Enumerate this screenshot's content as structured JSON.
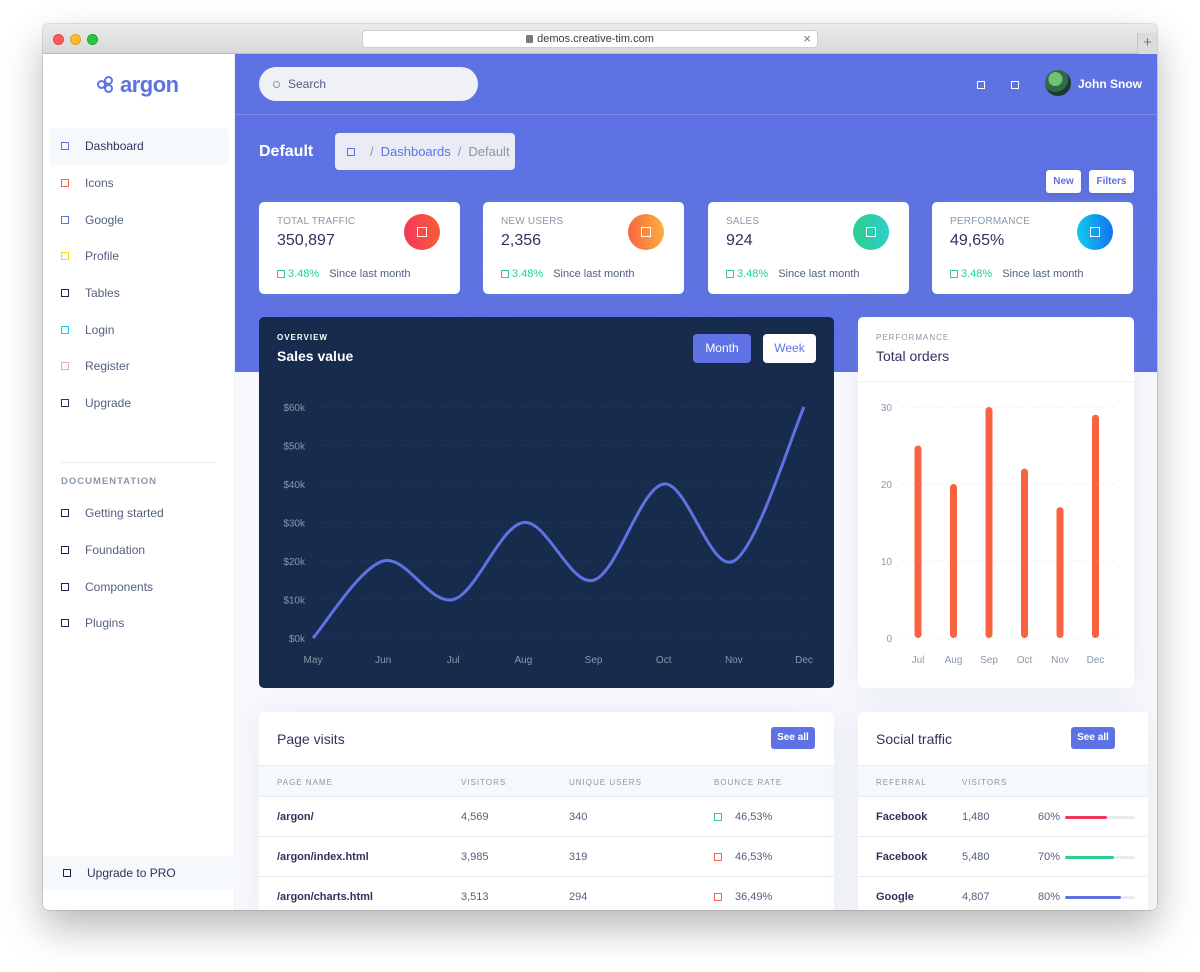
{
  "browser": {
    "url": "demos.creative-tim.com"
  },
  "brand": {
    "name": "argon"
  },
  "sidebar": {
    "items": [
      {
        "label": "Dashboard",
        "color": "#5e72e4"
      },
      {
        "label": "Icons",
        "color": "#fb6340"
      },
      {
        "label": "Google",
        "color": "#5e72e4"
      },
      {
        "label": "Profile",
        "color": "#ffd600"
      },
      {
        "label": "Tables",
        "color": "#172b4d"
      },
      {
        "label": "Login",
        "color": "#11cdef"
      },
      {
        "label": "Register",
        "color": "#f3a4b5"
      },
      {
        "label": "Upgrade",
        "color": "#32325d"
      }
    ],
    "doc_heading": "DOCUMENTATION",
    "doc_items": [
      "Getting started",
      "Foundation",
      "Components",
      "Plugins"
    ],
    "upgrade_pro": "Upgrade to PRO"
  },
  "header": {
    "search_placeholder": "Search",
    "user_name": "John Snow"
  },
  "page": {
    "title": "Default",
    "breadcrumb": [
      "Dashboards",
      "Default"
    ],
    "buttons": {
      "new": "New",
      "filters": "Filters"
    }
  },
  "stats": [
    {
      "label": "TOTAL TRAFFIC",
      "value": "350,897",
      "change": "3.48%",
      "since": "Since last month",
      "icon_colors": [
        "#f5365c",
        "#f56036"
      ]
    },
    {
      "label": "NEW USERS",
      "value": "2,356",
      "change": "3.48%",
      "since": "Since last month",
      "icon_colors": [
        "#fb6340",
        "#fbb140"
      ]
    },
    {
      "label": "SALES",
      "value": "924",
      "change": "3.48%",
      "since": "Since last month",
      "icon_colors": [
        "#2dce89",
        "#2dcecc"
      ]
    },
    {
      "label": "PERFORMANCE",
      "value": "49,65%",
      "change": "3.48%",
      "since": "Since last month",
      "icon_colors": [
        "#11cdef",
        "#1171ef"
      ]
    }
  ],
  "overview": {
    "label": "OVERVIEW",
    "title": "Sales value",
    "buttons": {
      "month": "Month",
      "week": "Week"
    }
  },
  "performance": {
    "label": "PERFORMANCE",
    "title": "Total orders"
  },
  "chart_data": [
    {
      "type": "line",
      "title": "Sales value",
      "categories": [
        "May",
        "Jun",
        "Jul",
        "Aug",
        "Sep",
        "Oct",
        "Nov",
        "Dec"
      ],
      "values": [
        0,
        20,
        10,
        30,
        15,
        40,
        20,
        60
      ],
      "y_ticks": [
        "$0k",
        "$10k",
        "$20k",
        "$30k",
        "$40k",
        "$50k",
        "$60k"
      ],
      "ylim": [
        0,
        60
      ],
      "color": "#5e72e4",
      "grid": true
    },
    {
      "type": "bar",
      "title": "Total orders",
      "categories": [
        "Jul",
        "Aug",
        "Sep",
        "Oct",
        "Nov",
        "Dec"
      ],
      "values": [
        25,
        20,
        30,
        22,
        17,
        29
      ],
      "y_ticks": [
        "0",
        "10",
        "20",
        "30"
      ],
      "ylim": [
        0,
        30
      ],
      "color": "#fb6340",
      "grid": true
    }
  ],
  "page_visits": {
    "title": "Page visits",
    "see_all": "See all",
    "columns": [
      "PAGE NAME",
      "VISITORS",
      "UNIQUE USERS",
      "BOUNCE RATE"
    ],
    "rows": [
      {
        "page": "/argon/",
        "visitors": "4,569",
        "unique": "340",
        "bounce": "46,53%",
        "color": "#2dce89"
      },
      {
        "page": "/argon/index.html",
        "visitors": "3,985",
        "unique": "319",
        "bounce": "46,53%",
        "color": "#fb6340"
      },
      {
        "page": "/argon/charts.html",
        "visitors": "3,513",
        "unique": "294",
        "bounce": "36,49%",
        "color": "#fb6340"
      }
    ]
  },
  "social_traffic": {
    "title": "Social traffic",
    "see_all": "See all",
    "columns": [
      "REFERRAL",
      "VISITORS"
    ],
    "rows": [
      {
        "referral": "Facebook",
        "visitors": "1,480",
        "percent": "60%",
        "fill": 0.6,
        "color": "#f5365c"
      },
      {
        "referral": "Facebook",
        "visitors": "5,480",
        "percent": "70%",
        "fill": 0.7,
        "color": "#2dce89"
      },
      {
        "referral": "Google",
        "visitors": "4,807",
        "percent": "80%",
        "fill": 0.8,
        "color": "#5e72e4"
      }
    ]
  }
}
